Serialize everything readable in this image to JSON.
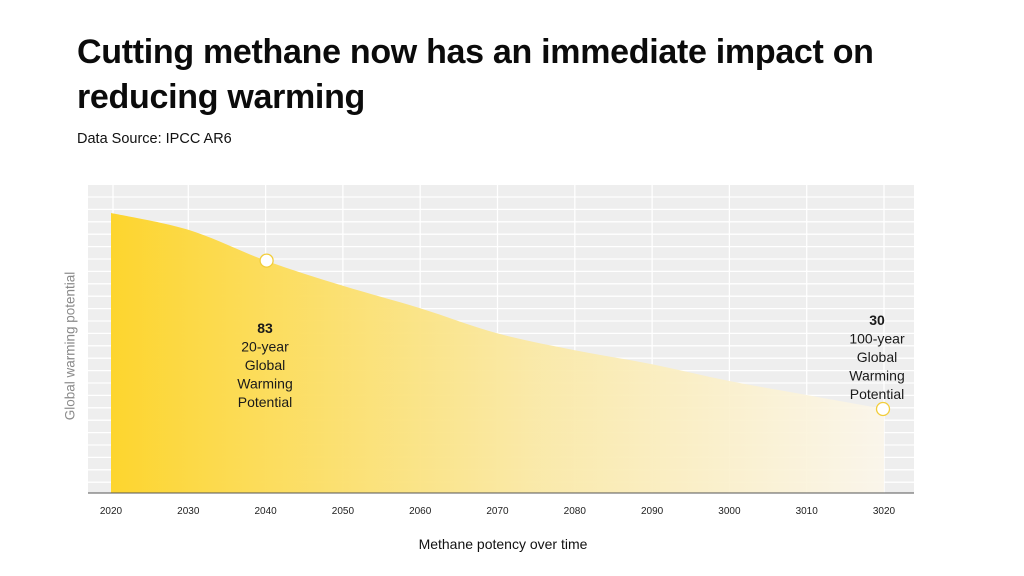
{
  "chart_data": {
    "type": "area",
    "title": "Cutting methane now has an immediate impact on reducing warming",
    "subtitle": "Data Source: IPCC AR6",
    "xlabel": "Methane potency over time",
    "ylabel": "Global warming potential",
    "x_ticks": [
      "2020",
      "2030",
      "2040",
      "2050",
      "2060",
      "2070",
      "2080",
      "2090",
      "3000",
      "3010",
      "3020"
    ],
    "series": [
      {
        "values": [
          100,
          94,
          83,
          74,
          66,
          57,
          51,
          46,
          40,
          35,
          30
        ]
      }
    ],
    "ylim": [
      0,
      110
    ],
    "grid": true,
    "annotations": [
      {
        "x_index": 2,
        "value": "83",
        "lines": [
          "20-year",
          "Global",
          "Warming",
          "Potential"
        ]
      },
      {
        "x_index": 10,
        "value": "30",
        "lines": [
          "100-year",
          "Global",
          "Warming",
          "Potential"
        ]
      }
    ],
    "colors": {
      "area_start": "#fdd52e",
      "area_end": "#fbf6ea",
      "grid_bg": "#eeeeee",
      "grid_line": "#ffffff",
      "marker_stroke": "#f2cd3a"
    }
  }
}
